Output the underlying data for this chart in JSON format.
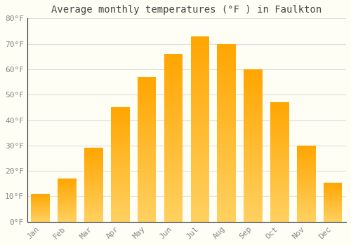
{
  "months": [
    "Jan",
    "Feb",
    "Mar",
    "Apr",
    "May",
    "Jun",
    "Jul",
    "Aug",
    "Sep",
    "Oct",
    "Nov",
    "Dec"
  ],
  "values": [
    11,
    17,
    29,
    45,
    57,
    66,
    73,
    70,
    60,
    47,
    30,
    15.5
  ],
  "bar_color": "#FFA500",
  "bar_color_light": "#FFD060",
  "title": "Average monthly temperatures (°F ) in Faulkton",
  "ylim": [
    0,
    80
  ],
  "ytick_step": 10,
  "background_color": "#FFFEF5",
  "grid_color": "#DDDDDD",
  "title_fontsize": 10,
  "tick_fontsize": 8,
  "bar_width": 0.7
}
